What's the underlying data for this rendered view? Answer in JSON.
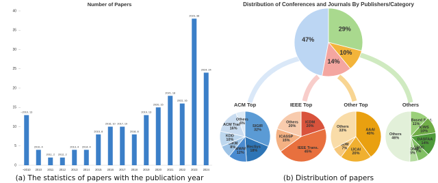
{
  "chart_data": [
    {
      "type": "bar",
      "title": "Number of Papers",
      "categories": [
        "~2010",
        "2010",
        "2011",
        "2012",
        "2013",
        "2014",
        "2015",
        "2016",
        "2017",
        "2018",
        "2019",
        "2020",
        "2021",
        "2022",
        "2023",
        "2024"
      ],
      "values": [
        13,
        4,
        2,
        2,
        4,
        4,
        8,
        10,
        10,
        8,
        13,
        15,
        18,
        16,
        38,
        24
      ],
      "value_labels": [
        "~2010, 13",
        "2010, 4",
        "2011, 2",
        "2012, 2",
        "2013, 4",
        "2014, 4",
        "2015, 8",
        "2016, 10",
        "2017, 10",
        "2018, 8",
        "2019, 13",
        "2020, 15",
        "2021, 18",
        "2022, 16",
        "2023, 38",
        "2024, 24"
      ],
      "color": "#3b7fc8",
      "ylim": [
        0,
        40
      ],
      "yticks": [
        0,
        5,
        10,
        15,
        20,
        25,
        30,
        35,
        40
      ]
    },
    {
      "type": "pie",
      "title": "Distribution of Conferences and Journals By Publishers/Category",
      "values": [
        47,
        29,
        10,
        14
      ],
      "value_labels": [
        "47%",
        "29%",
        "10%",
        "14%"
      ],
      "colors": [
        "#bcd6f3",
        "#a9d98e",
        "#f3b43a",
        "#f4a6a0"
      ]
    },
    {
      "type": "pie",
      "title": "ACM Top",
      "categories": [
        "SIGIR",
        "RecSys",
        "WWW",
        "CIKM",
        "KDD",
        "ACM Trans.",
        "Others"
      ],
      "values": [
        32,
        18,
        12,
        8,
        10,
        16,
        6
      ],
      "value_labels": [
        "32%",
        "18%",
        "12%",
        "8%",
        "10%",
        "16%",
        "6%"
      ],
      "colors": [
        "#5b9bd5",
        "#2e75b6",
        "#4a8bd0",
        "#9dc3e6",
        "#bdd7ee",
        "#c9dcf0",
        "#deebf7"
      ]
    },
    {
      "type": "pie",
      "title": "IEEE Top",
      "categories": [
        "ICDM",
        "IEEE Trans.",
        "ICASSP",
        "Others"
      ],
      "values": [
        20,
        45,
        15,
        20
      ],
      "value_labels": [
        "20%",
        "45%",
        "15%",
        "20%"
      ],
      "colors": [
        "#d9533c",
        "#e8703e",
        "#f4b183",
        "#f8cbad"
      ]
    },
    {
      "type": "pie",
      "title": "Other Top",
      "categories": [
        "AAAI",
        "IJCAI",
        "SDM",
        "Others"
      ],
      "values": [
        40,
        20,
        7,
        33
      ],
      "value_labels": [
        "40%",
        "20%",
        "7%",
        "33%"
      ],
      "colors": [
        "#e9a010",
        "#f0b030",
        "#f6c77a",
        "#f9dca8"
      ]
    },
    {
      "type": "pie",
      "title": "Others",
      "categories": [
        "Know.Based Syst.",
        "ICWS",
        "DASFAA",
        "ICSOC",
        "ICONIP",
        "Others"
      ],
      "values": [
        11,
        10,
        14,
        7,
        5,
        46
      ],
      "value_labels": [
        "11%",
        "10%",
        "14%",
        "7%",
        "5%",
        "46%"
      ],
      "colors": [
        "#9bd07a",
        "#70ad47",
        "#4f9a3a",
        "#82c064",
        "#b5dca0",
        "#e2f0d9"
      ]
    }
  ],
  "captions": [
    "(a) The statistics of papers with the publication year",
    "(b) Distribution of papers"
  ]
}
